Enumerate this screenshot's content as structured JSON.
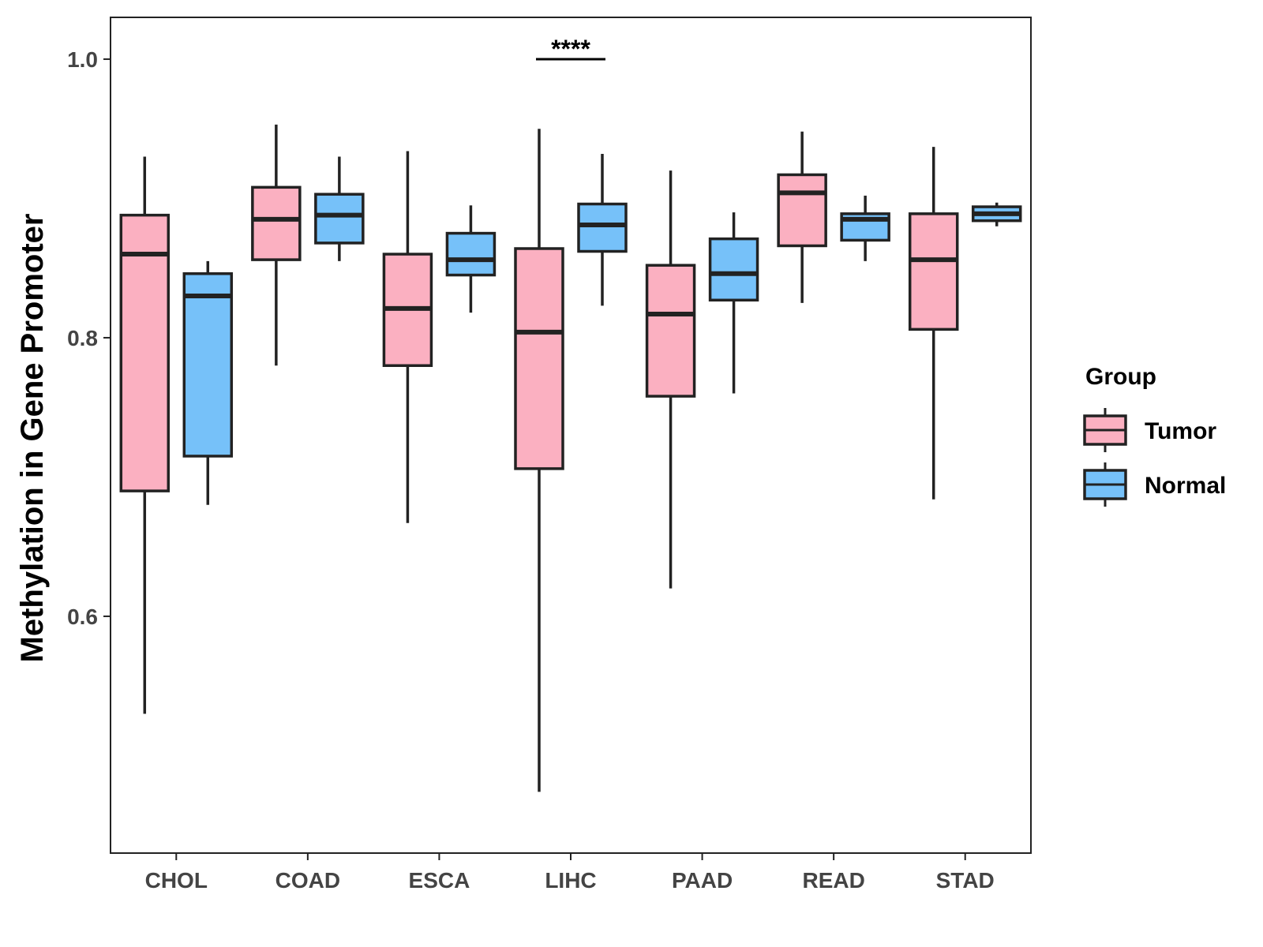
{
  "chart_data": {
    "type": "boxplot",
    "title": "",
    "xlabel": "",
    "ylabel": "Methylation in Gene Promoter",
    "ylim": [
      0.43,
      1.03
    ],
    "yticks": [
      0.6,
      0.8,
      1.0
    ],
    "ytick_labels": [
      "0.6",
      "0.8",
      "1.0"
    ],
    "categories": [
      "CHOL",
      "COAD",
      "ESCA",
      "LIHC",
      "PAAD",
      "READ",
      "STAD"
    ],
    "legend": {
      "title": "Group",
      "position": "right",
      "entries": [
        "Tumor",
        "Normal"
      ]
    },
    "colors": {
      "Tumor": "#FBB0C1",
      "Normal": "#76C1F9",
      "outline": "#222222"
    },
    "series": [
      {
        "name": "Tumor",
        "boxes": [
          {
            "category": "CHOL",
            "min": 0.53,
            "q1": 0.69,
            "median": 0.86,
            "q3": 0.888,
            "max": 0.93
          },
          {
            "category": "COAD",
            "min": 0.78,
            "q1": 0.856,
            "median": 0.885,
            "q3": 0.908,
            "max": 0.953
          },
          {
            "category": "ESCA",
            "min": 0.667,
            "q1": 0.78,
            "median": 0.821,
            "q3": 0.86,
            "max": 0.934
          },
          {
            "category": "LIHC",
            "min": 0.474,
            "q1": 0.706,
            "median": 0.804,
            "q3": 0.864,
            "max": 0.95
          },
          {
            "category": "PAAD",
            "min": 0.62,
            "q1": 0.758,
            "median": 0.817,
            "q3": 0.852,
            "max": 0.92
          },
          {
            "category": "READ",
            "min": 0.825,
            "q1": 0.866,
            "median": 0.904,
            "q3": 0.917,
            "max": 0.948
          },
          {
            "category": "STAD",
            "min": 0.684,
            "q1": 0.806,
            "median": 0.856,
            "q3": 0.889,
            "max": 0.937
          }
        ]
      },
      {
        "name": "Normal",
        "boxes": [
          {
            "category": "CHOL",
            "min": 0.68,
            "q1": 0.715,
            "median": 0.83,
            "q3": 0.846,
            "max": 0.855
          },
          {
            "category": "COAD",
            "min": 0.855,
            "q1": 0.868,
            "median": 0.888,
            "q3": 0.903,
            "max": 0.93
          },
          {
            "category": "ESCA",
            "min": 0.818,
            "q1": 0.845,
            "median": 0.856,
            "q3": 0.875,
            "max": 0.895
          },
          {
            "category": "LIHC",
            "min": 0.823,
            "q1": 0.862,
            "median": 0.881,
            "q3": 0.896,
            "max": 0.932
          },
          {
            "category": "PAAD",
            "min": 0.76,
            "q1": 0.827,
            "median": 0.846,
            "q3": 0.871,
            "max": 0.89
          },
          {
            "category": "READ",
            "min": 0.855,
            "q1": 0.87,
            "median": 0.885,
            "q3": 0.889,
            "max": 0.902
          },
          {
            "category": "STAD",
            "min": 0.88,
            "q1": 0.884,
            "median": 0.889,
            "q3": 0.894,
            "max": 0.897
          }
        ]
      }
    ],
    "annotations": [
      {
        "category": "LIHC",
        "text": "****",
        "y": 1.0
      }
    ]
  }
}
